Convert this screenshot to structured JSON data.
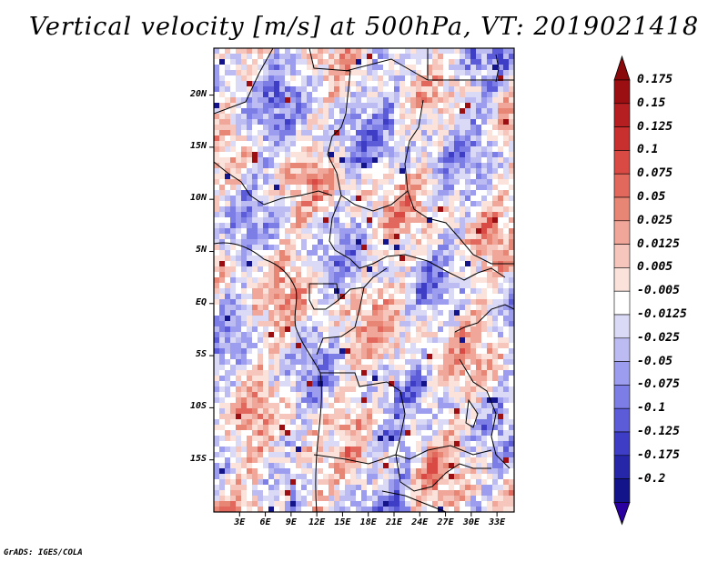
{
  "title": "Vertical velocity [m/s] at 500hPa, VT: 2019021418",
  "credit": "GrADS: IGES/COLA",
  "map": {
    "region": "Central Africa",
    "lat_labels": [
      "20N",
      "15N",
      "10N",
      "5N",
      "EQ",
      "5S",
      "10S",
      "15S"
    ],
    "lon_labels": [
      "3E",
      "6E",
      "9E",
      "12E",
      "15E",
      "18E",
      "21E",
      "24E",
      "27E",
      "30E",
      "33E"
    ],
    "lat_range": [
      -20,
      24.5
    ],
    "lon_range": [
      0,
      35
    ]
  },
  "colorbar": {
    "labels": [
      "0.175",
      "0.15",
      "0.125",
      "0.1",
      "0.075",
      "0.05",
      "0.025",
      "0.0125",
      "0.005",
      "-0.005",
      "-0.0125",
      "-0.025",
      "-0.05",
      "-0.075",
      "-0.1",
      "-0.125",
      "-0.175",
      "-0.2"
    ],
    "colors": [
      "#9b0f12",
      "#b51f22",
      "#c8302f",
      "#d84a43",
      "#e2675c",
      "#e88676",
      "#f0a799",
      "#f6c6bc",
      "#fbe3dc",
      "#ffffff",
      "#dadaf7",
      "#bcbcf3",
      "#9d9def",
      "#7d7de6",
      "#5c5cd8",
      "#3d3dc6",
      "#2626a8",
      "#14148a",
      "#2a00a0"
    ],
    "top_color": "#8a0a0c",
    "bottom_color": "#2a00a0"
  }
}
